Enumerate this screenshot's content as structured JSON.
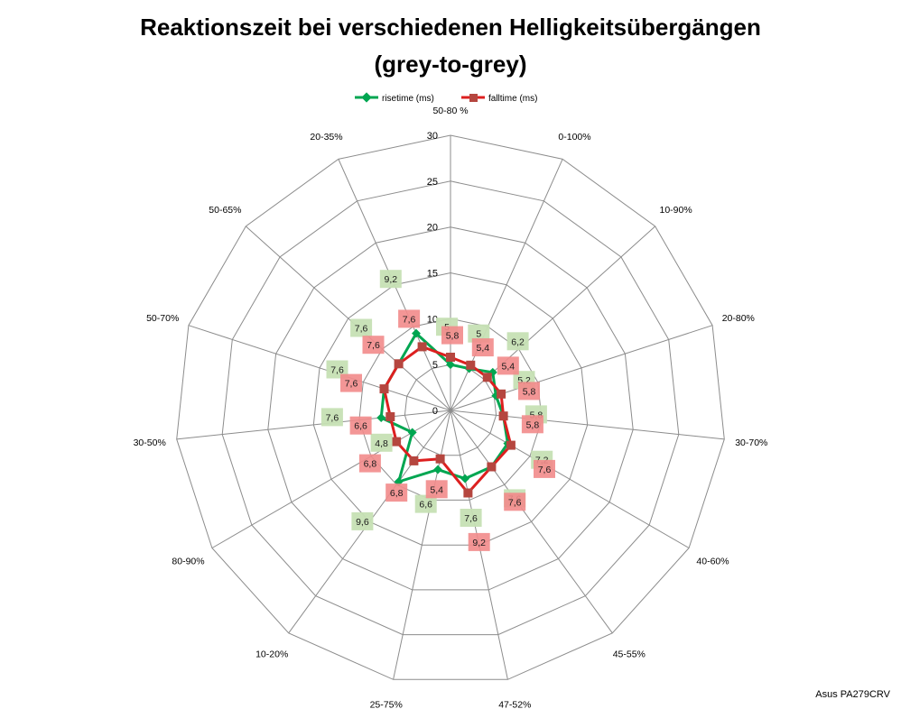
{
  "chart_data": {
    "type": "radar",
    "title_lines": [
      "Reaktionszeit bei verschiedenen Helligkeitsübergängen",
      "(grey-to-grey)"
    ],
    "categories": [
      "50-80 %",
      "0-100%",
      "10-90%",
      "20-80%",
      "30-70%",
      "40-60%",
      "45-55%",
      "47-52%",
      "25-75%",
      "10-20%",
      "80-90%",
      "30-50%",
      "50-70%",
      "50-65%",
      "20-35%"
    ],
    "radial_ticks": [
      "0",
      "5",
      "10",
      "15",
      "20",
      "25",
      "30"
    ],
    "rmax": 30,
    "tick_step": 5,
    "series": [
      {
        "name": "risetime (ms)",
        "color": "#00a651",
        "label_bg": "#c6e0b4",
        "marker": "diamond",
        "values": [
          5,
          5,
          6.2,
          5.2,
          5.8,
          7.2,
          7.6,
          7.6,
          6.6,
          9.6,
          4.8,
          7.6,
          7.6,
          7.6,
          9.2
        ],
        "value_labels": [
          "5",
          "5",
          "6,2",
          "5,2",
          "5,8",
          "7,2",
          "7,6",
          "7,6",
          "6,6",
          "9,6",
          "4,8",
          "7,6",
          "7,6",
          "7,6",
          "9,2"
        ]
      },
      {
        "name": "falltime (ms)",
        "color": "#dd1f1f",
        "label_bg": "#f28b8b",
        "marker": "square",
        "values": [
          5.8,
          5.4,
          5.4,
          5.8,
          5.8,
          7.6,
          7.6,
          9.2,
          5.4,
          6.8,
          6.8,
          6.6,
          7.6,
          7.6,
          7.6
        ],
        "value_labels": [
          "5,8",
          "5,4",
          "5,4",
          "5,8",
          "5,8",
          "7,6",
          "7,6",
          "9,2",
          "5,4",
          "6,8",
          "6,8",
          "6,6",
          "7,6",
          "7,6",
          "7,6"
        ]
      }
    ],
    "legend_position": "top",
    "grid": true
  },
  "credit": "Asus PA279CRV"
}
